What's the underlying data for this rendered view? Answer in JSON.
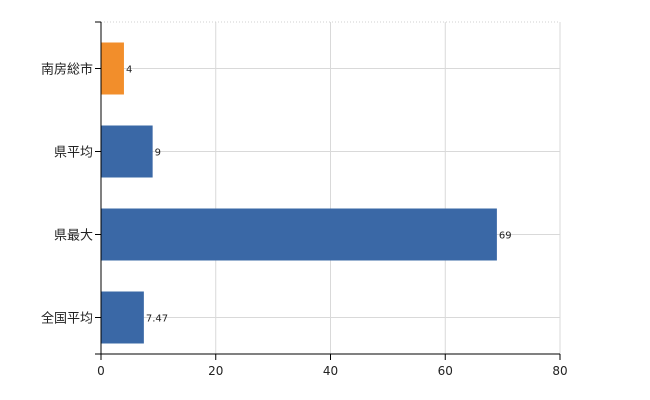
{
  "chart_data": {
    "type": "bar",
    "orientation": "horizontal",
    "categories": [
      "南房総市",
      "県平均",
      "県最大",
      "全国平均"
    ],
    "values": [
      4,
      9,
      69,
      7.47
    ],
    "value_labels": [
      "4",
      "9",
      "69",
      "7.47"
    ],
    "bar_colors": [
      "#f28e2b",
      "#3a68a6",
      "#3a68a6",
      "#3a68a6"
    ],
    "xlim": [
      0,
      80
    ],
    "xticks": [
      0,
      20,
      40,
      60,
      80
    ],
    "grid": true,
    "legend": "none",
    "title": "",
    "xlabel": "",
    "ylabel": ""
  }
}
